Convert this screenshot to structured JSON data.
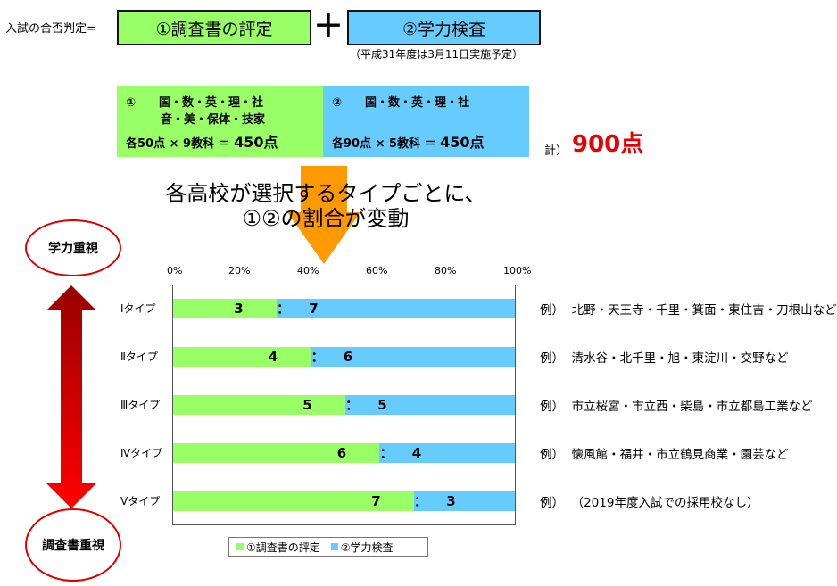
{
  "formula": {
    "label": "入試の合否判定=",
    "box1": "①調査書の評定",
    "plus": "＋",
    "box2": "②学力検査",
    "note": "（平成31年度は3月11日実施予定）"
  },
  "panels": {
    "green": {
      "line1": "①　　国・数・英・理・社",
      "line2": "　　　音・美・保体・技家",
      "line3_left": "各50点 × 9教科 ＝ ",
      "line3_value": "450点"
    },
    "blue": {
      "line1": "②　　国・数・英・理・社",
      "line3_left": "各90点 × 5教科 ＝ ",
      "line3_value": "450点"
    }
  },
  "total": {
    "label": "計）",
    "value": "900点"
  },
  "headline": {
    "line1": "各高校が選択するタイプごとに、",
    "line2": "①②の割合が変動"
  },
  "axis_circles": {
    "top": "学力重視",
    "bottom": "調査書重視"
  },
  "colors": {
    "green": "#99ff66",
    "blue": "#66ccff",
    "accent_red": "#e60000",
    "arrow_top": "#990000",
    "arrow_bottom": "#ff0000",
    "orange_arrow": "#ff9900"
  },
  "chart_data": {
    "type": "bar",
    "orientation": "horizontal",
    "stacked": true,
    "categories": [
      "Ⅰタイプ",
      "Ⅱタイプ",
      "Ⅲタイプ",
      "Ⅳタイプ",
      "Ⅴタイプ"
    ],
    "x_ticks": [
      "0%",
      "20%",
      "40%",
      "60%",
      "80%",
      "100%"
    ],
    "xlim": [
      0,
      100
    ],
    "series": [
      {
        "name": "①調査書の評定",
        "values": [
          30,
          40,
          50,
          60,
          70
        ],
        "labels": [
          "3",
          "4",
          "5",
          "6",
          "7"
        ]
      },
      {
        "name": "②学力検査",
        "values": [
          70,
          60,
          50,
          40,
          30
        ],
        "labels": [
          "7",
          "6",
          "5",
          "4",
          "3"
        ]
      }
    ],
    "separator": "：",
    "legend": "bottom",
    "grid": false
  },
  "examples": [
    "例）  北野・天王寺・千里・箕面・東住吉・刀根山など",
    "例）  清水谷・北千里・旭・東淀川・交野など",
    "例）  市立桜宮・市立西・柴島・市立都島工業など",
    "例）  懐風館・福井・市立鶴見商業・園芸など",
    "例）  （2019年度入試での採用校なし）"
  ]
}
